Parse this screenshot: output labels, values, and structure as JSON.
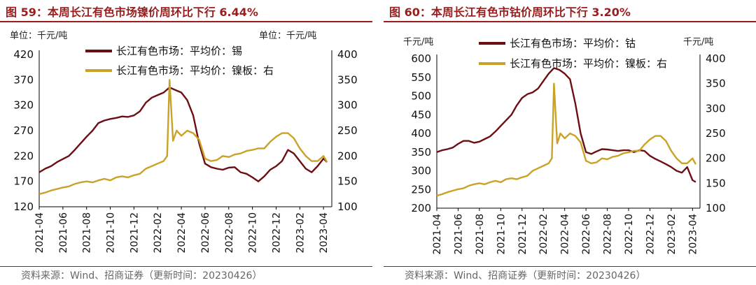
{
  "colors": {
    "title": "#9b1c1c",
    "primary_series": "#6b0f14",
    "secondary_series": "#c9a227",
    "axis": "#000000"
  },
  "panels": [
    {
      "title": "图 59：本周长江有色市场镍价周环比下行 6.44%",
      "left_unit": "单位：千元/吨",
      "right_unit": "单位：千元/吨",
      "source": "资料来源：Wind、招商证券（更新时间：20230426）"
    },
    {
      "title": "图 60：本周长江有色市钴价周环比下行 3.20%",
      "left_unit": "千元/吨",
      "right_unit": "千元/吨",
      "source": "资料来源：Wind、招商证券（更新时间：20230426）"
    }
  ],
  "chart_data": [
    {
      "type": "line",
      "x_ticks": [
        "2021-04",
        "2021-06",
        "2021-08",
        "2021-10",
        "2021-12",
        "2022-02",
        "2022-04",
        "2022-06",
        "2022-08",
        "2022-10",
        "2022-12",
        "2023-02",
        "2023-04"
      ],
      "x_range": [
        0,
        24.7
      ],
      "y_left_ticks": [
        120,
        170,
        220,
        270,
        320,
        370,
        420
      ],
      "y_left_range": [
        120,
        420
      ],
      "y_right_ticks": [
        100,
        150,
        200,
        250,
        300,
        350,
        400
      ],
      "y_right_range": [
        100,
        400
      ],
      "series": [
        {
          "name": "长江有色市场：平均价：锡",
          "axis": "left",
          "color": "#6b0f14",
          "x": [
            0,
            0.5,
            1,
            1.5,
            2,
            2.5,
            3,
            3.5,
            4,
            4.5,
            5,
            5.5,
            6,
            6.5,
            7,
            7.5,
            8,
            8.5,
            9,
            9.5,
            10,
            10.5,
            11,
            11.5,
            12,
            12.5,
            13,
            13.5,
            14,
            14.5,
            15,
            15.5,
            16,
            16.5,
            17,
            17.5,
            18,
            18.5,
            19,
            19.5,
            20,
            20.5,
            21,
            21.5,
            22,
            22.5,
            23,
            23.5,
            24,
            24.3
          ],
          "values": [
            188,
            195,
            200,
            208,
            214,
            220,
            232,
            245,
            258,
            270,
            285,
            290,
            293,
            295,
            298,
            297,
            300,
            308,
            325,
            335,
            340,
            345,
            355,
            350,
            345,
            330,
            300,
            245,
            205,
            198,
            195,
            193,
            197,
            198,
            188,
            185,
            178,
            170,
            180,
            193,
            200,
            210,
            232,
            225,
            210,
            195,
            188,
            200,
            215,
            208
          ]
        },
        {
          "name": "长江有色市场：平均价：镍板：右",
          "axis": "right",
          "color": "#c9a227",
          "x": [
            0,
            0.5,
            1,
            1.5,
            2,
            2.5,
            3,
            3.5,
            4,
            4.5,
            5,
            5.5,
            6,
            6.5,
            7,
            7.5,
            8,
            8.5,
            9,
            9.5,
            10,
            10.5,
            10.8,
            11,
            11.3,
            11.6,
            12,
            12.5,
            13,
            13.5,
            14,
            14.5,
            15,
            15.5,
            16,
            16.5,
            17,
            17.5,
            18,
            18.5,
            19,
            19.5,
            20,
            20.5,
            21,
            21.5,
            22,
            22.5,
            23,
            23.5,
            24,
            24.3
          ],
          "values": [
            125,
            128,
            132,
            135,
            138,
            140,
            145,
            148,
            150,
            148,
            152,
            155,
            152,
            158,
            160,
            158,
            162,
            165,
            175,
            180,
            185,
            190,
            200,
            350,
            230,
            250,
            240,
            250,
            245,
            232,
            195,
            190,
            192,
            200,
            198,
            203,
            205,
            210,
            212,
            215,
            215,
            228,
            238,
            245,
            245,
            235,
            215,
            200,
            190,
            190,
            200,
            188
          ]
        }
      ]
    },
    {
      "type": "line",
      "x_ticks": [
        "2021-04",
        "2021-06",
        "2021-08",
        "2021-10",
        "2021-12",
        "2022-02",
        "2022-04",
        "2022-06",
        "2022-08",
        "2022-10",
        "2022-12",
        "2023-02",
        "2023-04"
      ],
      "x_range": [
        0,
        24.7
      ],
      "y_left_ticks": [
        200,
        250,
        300,
        350,
        400,
        450,
        500,
        550,
        600
      ],
      "y_left_range": [
        200,
        600
      ],
      "y_right_ticks": [
        100,
        150,
        200,
        250,
        300,
        350,
        400
      ],
      "y_right_range": [
        100,
        400
      ],
      "series": [
        {
          "name": "长江有色市场：平均价：钴",
          "axis": "left",
          "color": "#6b0f14",
          "x": [
            0,
            0.5,
            1,
            1.5,
            2,
            2.5,
            3,
            3.5,
            4,
            4.5,
            5,
            5.5,
            6,
            6.5,
            7,
            7.5,
            8,
            8.5,
            9,
            9.5,
            10,
            10.5,
            11,
            11.5,
            12,
            12.5,
            13,
            13.5,
            14,
            14.5,
            15,
            15.5,
            16,
            16.5,
            17,
            17.5,
            18,
            18.5,
            19,
            19.5,
            20,
            20.5,
            21,
            21.5,
            22,
            22.5,
            23,
            23.5,
            24,
            24.3
          ],
          "values": [
            350,
            355,
            358,
            362,
            372,
            380,
            380,
            375,
            378,
            385,
            392,
            405,
            420,
            435,
            450,
            475,
            495,
            505,
            510,
            520,
            540,
            560,
            575,
            570,
            560,
            545,
            480,
            400,
            350,
            345,
            352,
            358,
            357,
            355,
            353,
            355,
            355,
            350,
            355,
            353,
            340,
            332,
            325,
            318,
            310,
            300,
            295,
            310,
            275,
            270
          ]
        },
        {
          "name": "长江有色市场：平均价：镍板：右",
          "axis": "right",
          "color": "#c9a227",
          "x": [
            0,
            0.5,
            1,
            1.5,
            2,
            2.5,
            3,
            3.5,
            4,
            4.5,
            5,
            5.5,
            6,
            6.5,
            7,
            7.5,
            8,
            8.5,
            9,
            9.5,
            10,
            10.5,
            10.8,
            11,
            11.3,
            11.6,
            12,
            12.5,
            13,
            13.5,
            14,
            14.5,
            15,
            15.5,
            16,
            16.5,
            17,
            17.5,
            18,
            18.5,
            19,
            19.5,
            20,
            20.5,
            21,
            21.5,
            22,
            22.5,
            23,
            23.5,
            24,
            24.3
          ],
          "values": [
            125,
            128,
            132,
            135,
            138,
            140,
            145,
            148,
            150,
            148,
            152,
            155,
            152,
            158,
            160,
            158,
            162,
            165,
            175,
            180,
            185,
            190,
            200,
            350,
            230,
            250,
            240,
            250,
            245,
            232,
            195,
            190,
            192,
            200,
            198,
            203,
            205,
            210,
            212,
            215,
            215,
            228,
            238,
            245,
            245,
            235,
            215,
            200,
            190,
            190,
            200,
            188
          ]
        }
      ]
    }
  ]
}
